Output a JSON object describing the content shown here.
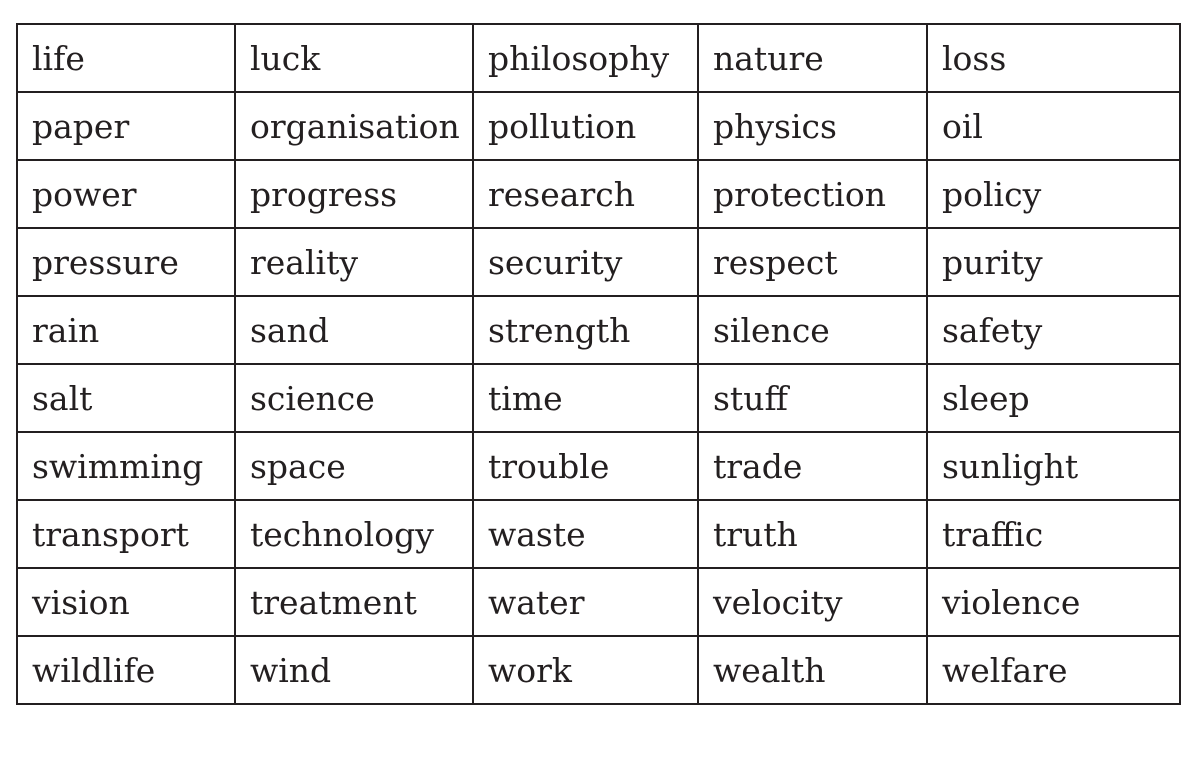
{
  "rows": [
    [
      "life",
      "luck",
      "philosophy",
      "nature",
      "loss"
    ],
    [
      "paper",
      "organisation",
      "pollution",
      "physics",
      "oil"
    ],
    [
      "power",
      "progress",
      "research",
      "protection",
      "policy"
    ],
    [
      "pressure",
      "reality",
      "security",
      "respect",
      "purity"
    ],
    [
      "rain",
      "sand",
      "strength",
      "silence",
      "safety"
    ],
    [
      "salt",
      "science",
      "time",
      "stuff",
      "sleep"
    ],
    [
      "swimming",
      "space",
      "trouble",
      "trade",
      "sunlight"
    ],
    [
      "transport",
      "technology",
      "waste",
      "truth",
      "traffic"
    ],
    [
      "vision",
      "treatment",
      "water",
      "velocity",
      "violence"
    ],
    [
      "wildlife",
      "wind",
      "work",
      "wealth",
      "welfare"
    ]
  ]
}
